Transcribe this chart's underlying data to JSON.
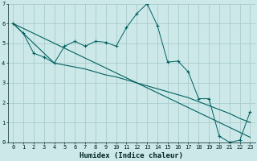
{
  "xlabel": "Humidex (Indice chaleur)",
  "background_color": "#cce8e8",
  "grid_color": "#aacccc",
  "line_color": "#006060",
  "xlim": [
    -0.5,
    23.5
  ],
  "ylim": [
    0,
    7
  ],
  "xticks": [
    0,
    1,
    2,
    3,
    4,
    5,
    6,
    7,
    8,
    9,
    10,
    11,
    12,
    13,
    14,
    15,
    16,
    17,
    18,
    19,
    20,
    21,
    22,
    23
  ],
  "yticks": [
    0,
    1,
    2,
    3,
    4,
    5,
    6,
    7
  ],
  "series1_x": [
    0,
    1,
    2,
    3,
    4,
    5,
    6,
    7,
    8,
    9,
    10,
    11,
    12,
    13,
    14,
    15,
    16,
    17,
    18,
    19,
    20,
    21,
    22,
    23
  ],
  "series1_y": [
    6.0,
    5.5,
    4.5,
    4.3,
    4.0,
    4.85,
    5.1,
    4.85,
    5.1,
    5.05,
    4.85,
    5.8,
    6.5,
    7.0,
    5.9,
    4.05,
    4.1,
    3.55,
    2.2,
    2.2,
    0.3,
    0.0,
    0.1,
    1.55
  ],
  "series2_x": [
    0,
    23
  ],
  "series2_y": [
    6.0,
    0.25
  ],
  "series3_x": [
    0,
    4,
    5,
    6,
    7,
    8,
    9,
    10,
    11,
    12,
    13,
    14,
    15,
    16,
    17,
    18,
    19,
    20,
    21,
    22,
    23
  ],
  "series3_y": [
    6.0,
    4.0,
    3.9,
    3.8,
    3.7,
    3.55,
    3.4,
    3.3,
    3.15,
    3.0,
    2.85,
    2.7,
    2.55,
    2.4,
    2.25,
    2.05,
    1.85,
    1.65,
    1.45,
    1.2,
    1.0
  ]
}
